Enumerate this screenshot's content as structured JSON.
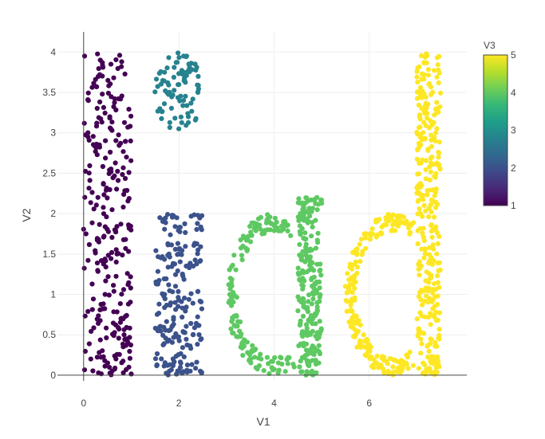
{
  "chart_data": {
    "type": "scatter",
    "xlabel": "V1",
    "ylabel": "V2",
    "xlim": [
      -0.55,
      8.05
    ],
    "ylim": [
      -0.07,
      4.25
    ],
    "xticks": [
      "0",
      "2",
      "4",
      "6"
    ],
    "xtick_values": [
      0,
      2,
      4,
      6
    ],
    "yticks": [
      "0",
      "0.5",
      "1",
      "1.5",
      "2",
      "2.5",
      "3",
      "3.5",
      "4"
    ],
    "ytick_values": [
      0,
      0.5,
      1,
      1.5,
      2,
      2.5,
      3,
      3.5,
      4
    ],
    "grid": true,
    "colorbar": {
      "title": "V3",
      "range": [
        1,
        5
      ],
      "ticks": [
        "1",
        "2",
        "3",
        "4",
        "5"
      ],
      "tick_values": [
        1,
        2,
        3,
        4,
        5
      ],
      "colorscale": [
        "#440154",
        "#482878",
        "#3e4989",
        "#31688e",
        "#26828e",
        "#1f9e89",
        "#35b779",
        "#6ece58",
        "#b5de2b",
        "#fde725"
      ],
      "placement": "right"
    },
    "series": [
      {
        "v3": 1,
        "color": "#440154",
        "region": "rectangle",
        "x_range": [
          0,
          1
        ],
        "y_range": [
          0,
          4
        ],
        "n": 260,
        "sample_points": [
          [
            0.02,
            3.95
          ],
          [
            0.35,
            3.9
          ],
          [
            0.8,
            3.88
          ],
          [
            0.1,
            3.4
          ],
          [
            0.55,
            3.2
          ],
          [
            0.9,
            2.7
          ],
          [
            0.3,
            2.2
          ],
          [
            0.05,
            1.75
          ],
          [
            0.7,
            1.5
          ],
          [
            0.45,
            1.0
          ],
          [
            0.85,
            0.5
          ],
          [
            0.15,
            0.2
          ],
          [
            0.6,
            0.05
          ],
          [
            0.95,
            0.1
          ]
        ]
      },
      {
        "v3": 3,
        "color": "#26828e",
        "region": "ellipse",
        "center": [
          2,
          3.5
        ],
        "radii": [
          0.5,
          0.5
        ],
        "n": 80,
        "sample_points": [
          [
            2.1,
            3.95
          ],
          [
            1.7,
            3.75
          ],
          [
            2.4,
            3.5
          ],
          [
            1.6,
            3.3
          ],
          [
            2.0,
            3.05
          ],
          [
            2.2,
            3.2
          ]
        ]
      },
      {
        "v3": 2,
        "color": "#3b528b",
        "region": "rectangle",
        "x_range": [
          1.5,
          2.5
        ],
        "y_range": [
          0,
          2
        ],
        "n": 200,
        "sample_points": [
          [
            1.6,
            1.95
          ],
          [
            2.4,
            1.98
          ],
          [
            2.0,
            1.5
          ],
          [
            1.7,
            1.0
          ],
          [
            2.3,
            0.5
          ],
          [
            1.8,
            0.05
          ],
          [
            2.45,
            0.05
          ]
        ]
      },
      {
        "v3": 4,
        "color": "#5ec962",
        "region": "letter-d",
        "ring_center": [
          4,
          1
        ],
        "ring_radius": 1,
        "stem_x_range": [
          4.5,
          5
        ],
        "stem_y_range": [
          0,
          2.2
        ],
        "n": 380,
        "sample_points": [
          [
            3.05,
            0.9
          ],
          [
            3.6,
            1.85
          ],
          [
            4.2,
            1.9
          ],
          [
            4.9,
            2.2
          ],
          [
            4.6,
            1.2
          ],
          [
            3.9,
            0.02
          ],
          [
            4.8,
            0.05
          ]
        ]
      },
      {
        "v3": 5,
        "color": "#fde725",
        "region": "letter-d",
        "ring_center": [
          6.5,
          1
        ],
        "ring_radius": 1,
        "stem_x_range": [
          7,
          7.5
        ],
        "stem_y_range": [
          0,
          4
        ],
        "n": 520,
        "sample_points": [
          [
            5.5,
            1.1
          ],
          [
            5.9,
            1.75
          ],
          [
            6.6,
            1.9
          ],
          [
            7.2,
            3.98
          ],
          [
            7.4,
            3.0
          ],
          [
            6.4,
            0.05
          ],
          [
            7.4,
            0.05
          ]
        ]
      }
    ]
  }
}
